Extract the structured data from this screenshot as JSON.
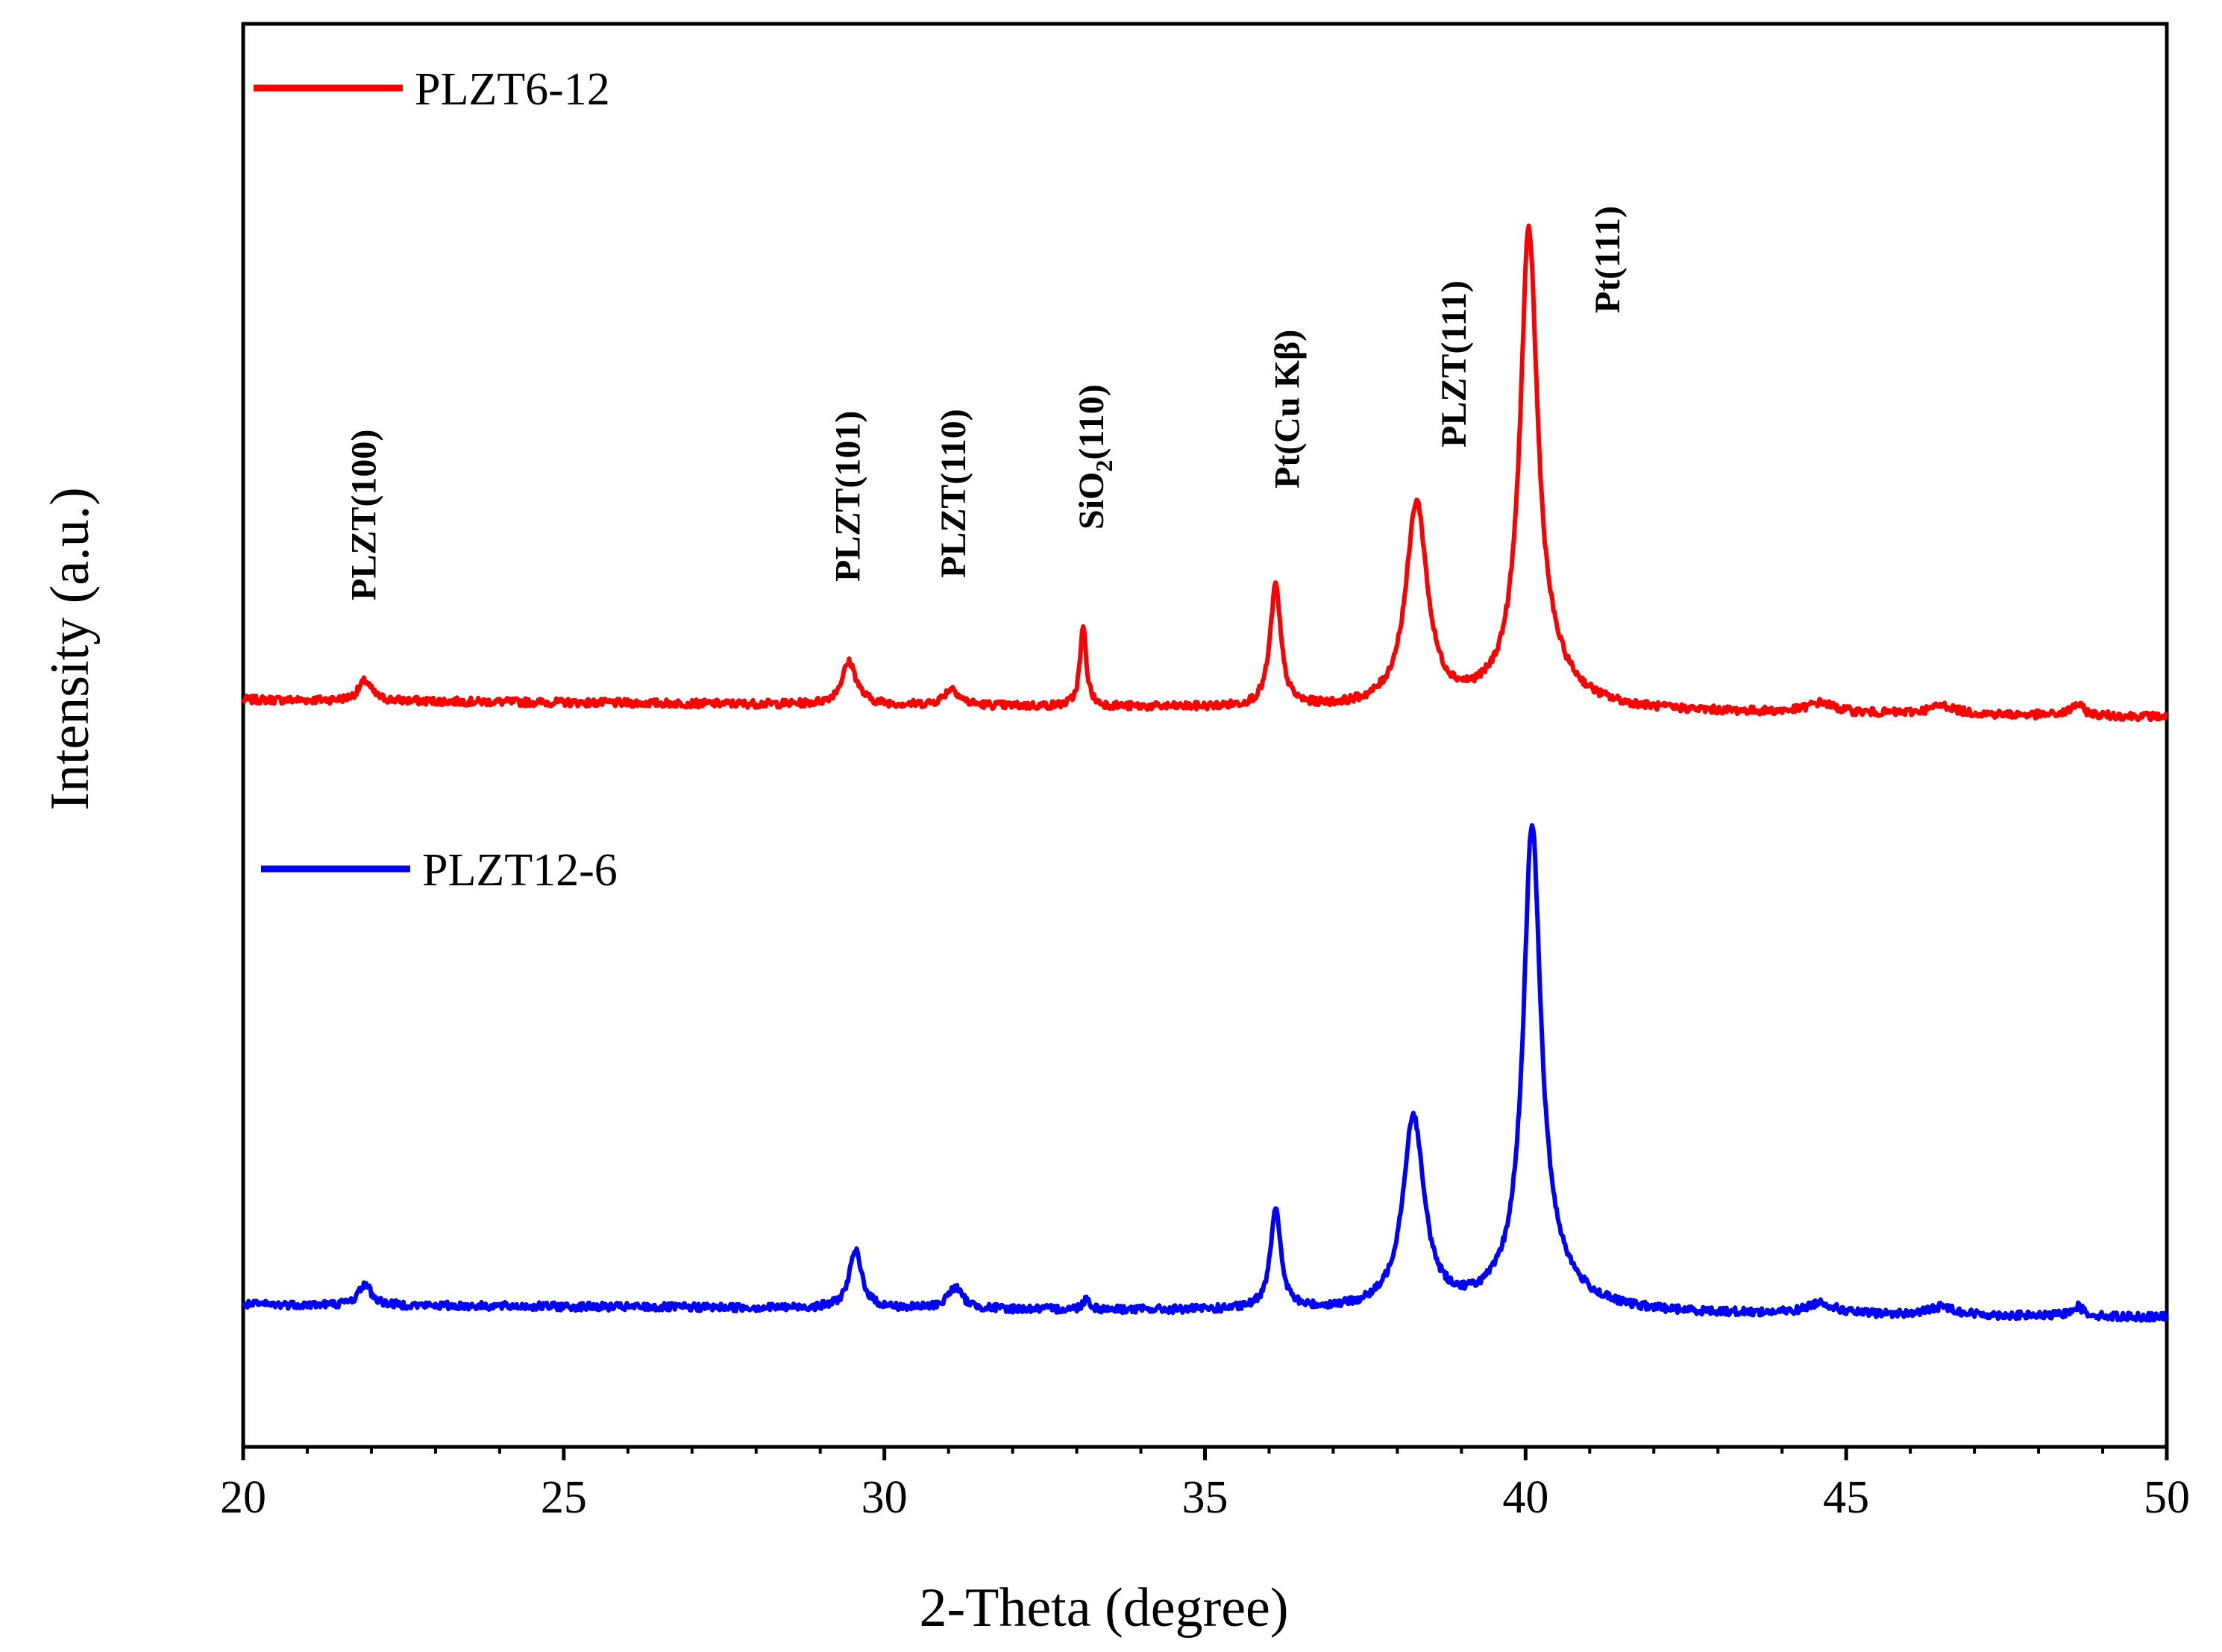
{
  "chart_data": {
    "type": "line",
    "title": "",
    "xlabel": "2-Theta (degree)",
    "ylabel": "Intensity (a.u.)",
    "xlim": [
      20,
      50
    ],
    "ylim": [
      0,
      100
    ],
    "x_ticks": [
      {
        "value": 20,
        "label": "20"
      },
      {
        "value": 25,
        "label": "25"
      },
      {
        "value": 30,
        "label": "30"
      },
      {
        "value": 35,
        "label": "35"
      },
      {
        "value": 40,
        "label": "40"
      },
      {
        "value": 45,
        "label": "45"
      },
      {
        "value": 50,
        "label": "50"
      }
    ],
    "grid": false,
    "legend": [
      {
        "name": "PLZT6-12",
        "color": "#ff0000"
      },
      {
        "name": "PLZT12-6",
        "color": "#0000ff"
      }
    ],
    "series": [
      {
        "name": "PLZT6-12",
        "color": "#ff0000",
        "baseline": 52.5,
        "slope": -0.04,
        "peaks": [
          {
            "x": 21.9,
            "height": 1.4,
            "width": 0.12
          },
          {
            "x": 29.45,
            "height": 3.0,
            "width": 0.14
          },
          {
            "x": 31.05,
            "height": 1.2,
            "width": 0.14
          },
          {
            "x": 33.1,
            "height": 5.5,
            "width": 0.06
          },
          {
            "x": 36.1,
            "height": 8.5,
            "width": 0.1
          },
          {
            "x": 38.3,
            "height": 14.3,
            "width": 0.2
          },
          {
            "x": 40.05,
            "height": 31.0,
            "width": 0.16
          },
          {
            "x": 40.2,
            "height": 3.0,
            "width": 0.5
          },
          {
            "x": 44.6,
            "height": 0.7,
            "width": 0.25
          },
          {
            "x": 46.5,
            "height": 0.6,
            "width": 0.25
          },
          {
            "x": 48.6,
            "height": 0.8,
            "width": 0.12
          }
        ]
      },
      {
        "name": "PLZT12-6",
        "color": "#0000ff",
        "baseline": 10.0,
        "slope": -0.03,
        "peaks": [
          {
            "x": 21.9,
            "height": 1.5,
            "width": 0.12
          },
          {
            "x": 29.55,
            "height": 4.0,
            "width": 0.12
          },
          {
            "x": 31.1,
            "height": 1.5,
            "width": 0.14
          },
          {
            "x": 33.15,
            "height": 0.8,
            "width": 0.06
          },
          {
            "x": 36.1,
            "height": 7.0,
            "width": 0.1
          },
          {
            "x": 38.25,
            "height": 13.5,
            "width": 0.2
          },
          {
            "x": 40.1,
            "height": 31.5,
            "width": 0.16
          },
          {
            "x": 40.25,
            "height": 3.0,
            "width": 0.5
          },
          {
            "x": 44.6,
            "height": 0.8,
            "width": 0.25
          },
          {
            "x": 46.5,
            "height": 0.6,
            "width": 0.25
          },
          {
            "x": 48.6,
            "height": 0.7,
            "width": 0.12
          }
        ]
      }
    ],
    "annotations": [
      {
        "text": "PLZT(100)",
        "x": 21.9,
        "sub": ""
      },
      {
        "text": "PLZT(101)",
        "x": 29.45,
        "sub": ""
      },
      {
        "text": "PLZT(110)",
        "x": 31.1,
        "sub": ""
      },
      {
        "text": "SiO",
        "x": 33.25,
        "sub": "2",
        "suffix": "(110)"
      },
      {
        "text": "Pt(Cu Kβ)",
        "x": 36.3,
        "sub": ""
      },
      {
        "text": "PLZT(111)",
        "x": 38.9,
        "sub": ""
      },
      {
        "text": "Pt(111)",
        "x": 41.3,
        "sub": ""
      }
    ]
  }
}
